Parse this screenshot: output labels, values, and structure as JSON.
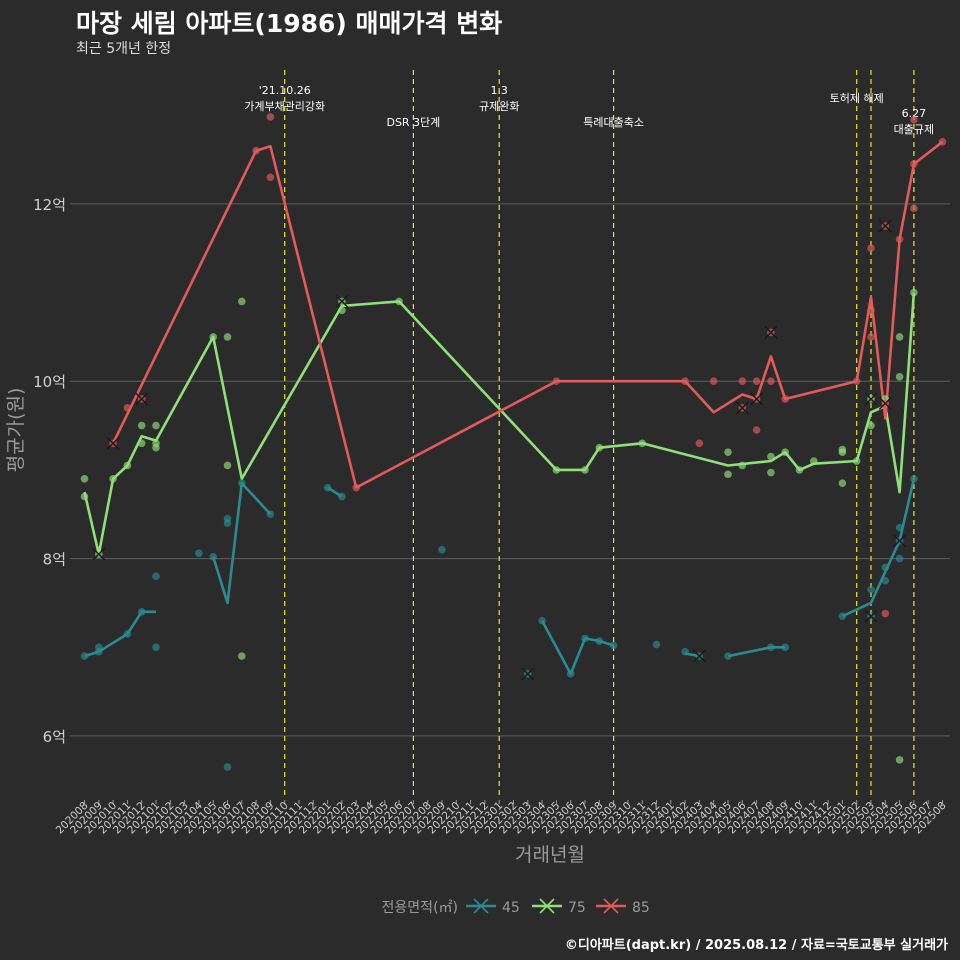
{
  "chart_data": {
    "type": "line",
    "title": "마장 세림 아파트(1986) 매매가격 변화",
    "subtitle": "최근 5개년 한정",
    "xlabel": "거래년월",
    "ylabel": "평균가(원)",
    "caption": "©디아파트(dapt.kr) / 2025.08.12 / 자료=국토교통부 실거래가",
    "y_unit": "억",
    "ylim": [
      5.3,
      13.6
    ],
    "yticks": [
      6,
      8,
      10,
      12
    ],
    "ytick_labels": [
      "6억",
      "8억",
      "10억",
      "12억"
    ],
    "categories": [
      "202008",
      "202009",
      "202010",
      "202011",
      "202012",
      "202101",
      "202102",
      "202103",
      "202104",
      "202105",
      "202106",
      "202107",
      "202108",
      "202109",
      "202110",
      "202111",
      "202112",
      "202201",
      "202202",
      "202203",
      "202204",
      "202205",
      "202206",
      "202207",
      "202208",
      "202209",
      "202210",
      "202211",
      "202212",
      "202301",
      "202302",
      "202303",
      "202304",
      "202305",
      "202306",
      "202307",
      "202308",
      "202309",
      "202310",
      "202311",
      "202312",
      "202401",
      "202402",
      "202403",
      "202404",
      "202405",
      "202406",
      "202407",
      "202408",
      "202409",
      "202410",
      "202411",
      "202412",
      "202501",
      "202502",
      "202503",
      "202504",
      "202505",
      "202506",
      "202507",
      "202508"
    ],
    "events": [
      {
        "month": "202110",
        "label": "'21.10.26\n가계부채관리강화"
      },
      {
        "month": "202207",
        "label": "DSR 3단계"
      },
      {
        "month": "202301",
        "label": "1.3\n규제완화"
      },
      {
        "month": "202309",
        "label": "특례대출축소"
      },
      {
        "month": "202502",
        "label": "토허제 해제"
      },
      {
        "month": "202503",
        "label": ""
      },
      {
        "month": "202506",
        "label": "6.27\n대출규제"
      }
    ],
    "legend": {
      "title": "전용면적(㎡)",
      "position": "bottom"
    },
    "series": [
      {
        "name": "45",
        "color": "#2a8c92",
        "line": [
          [
            [
              "202008",
              6.9
            ],
            [
              "202009",
              6.95
            ],
            [
              "202011",
              7.15
            ],
            [
              "202012",
              7.4
            ],
            [
              "202101",
              7.4
            ]
          ],
          [
            [
              "202105",
              8.02
            ],
            [
              "202106",
              7.5
            ],
            [
              "202107",
              8.85
            ],
            [
              "202109",
              8.5
            ]
          ],
          [
            [
              "202201",
              8.8
            ],
            [
              "202202",
              8.7
            ]
          ],
          [
            [
              "202304",
              7.3
            ],
            [
              "202306",
              6.7
            ],
            [
              "202307",
              7.1
            ],
            [
              "202308",
              7.07
            ],
            [
              "202309",
              7.02
            ]
          ],
          [
            [
              "202402",
              6.93
            ],
            [
              "202403",
              6.9
            ]
          ],
          [
            [
              "202405",
              6.9
            ],
            [
              "202408",
              7.0
            ],
            [
              "202409",
              7.0
            ]
          ],
          [
            [
              "202501",
              7.35
            ],
            [
              "202503",
              7.5
            ],
            [
              "202505",
              8.2
            ],
            [
              "202506",
              8.9
            ]
          ]
        ],
        "points": [
          [
            "202008",
            6.9
          ],
          [
            "202009",
            6.95
          ],
          [
            "202009",
            7.0
          ],
          [
            "202011",
            7.15
          ],
          [
            "202012",
            7.4
          ],
          [
            "202101",
            7.8
          ],
          [
            "202101",
            7.0
          ],
          [
            "202104",
            8.06
          ],
          [
            "202105",
            8.02
          ],
          [
            "202106",
            8.45
          ],
          [
            "202106",
            8.4
          ],
          [
            "202106",
            5.65
          ],
          [
            "202107",
            8.85
          ],
          [
            "202109",
            8.5
          ],
          [
            "202201",
            8.8
          ],
          [
            "202202",
            8.7
          ],
          [
            "202209",
            8.1
          ],
          [
            "202303",
            6.7
          ],
          [
            "202304",
            7.3
          ],
          [
            "202306",
            6.7
          ],
          [
            "202307",
            7.1
          ],
          [
            "202308",
            7.07
          ],
          [
            "202309",
            7.02
          ],
          [
            "202312",
            7.03
          ],
          [
            "202402",
            6.95
          ],
          [
            "202403",
            6.9
          ],
          [
            "202405",
            6.9
          ],
          [
            "202408",
            7.0
          ],
          [
            "202409",
            7.0
          ],
          [
            "202501",
            7.35
          ],
          [
            "202503",
            7.35
          ],
          [
            "202503",
            7.65
          ],
          [
            "202504",
            7.75
          ],
          [
            "202504",
            7.9
          ],
          [
            "202505",
            8.0
          ],
          [
            "202505",
            8.2
          ],
          [
            "202505",
            8.35
          ],
          [
            "202506",
            8.9
          ]
        ],
        "cross_points": [
          [
            "202303",
            6.7
          ],
          [
            "202403",
            6.9
          ],
          [
            "202503",
            7.35
          ],
          [
            "202505",
            8.2
          ]
        ]
      },
      {
        "name": "75",
        "color": "#90e07a",
        "line": [
          [
            [
              "202008",
              8.75
            ],
            [
              "202009",
              8.05
            ],
            [
              "202010",
              8.9
            ],
            [
              "202011",
              9.05
            ],
            [
              "202012",
              9.38
            ],
            [
              "202101",
              9.33
            ],
            [
              "202105",
              10.5
            ],
            [
              "202107",
              8.9
            ],
            [
              "202202",
              10.85
            ],
            [
              "202206",
              10.9
            ],
            [
              "202305",
              9.0
            ],
            [
              "202307",
              9.0
            ],
            [
              "202308",
              9.25
            ],
            [
              "202311",
              9.3
            ],
            [
              "202405",
              9.05
            ],
            [
              "202408",
              9.1
            ],
            [
              "202409",
              9.2
            ],
            [
              "202410",
              9.0
            ],
            [
              "202411",
              9.07
            ],
            [
              "202502",
              9.1
            ],
            [
              "202503",
              9.65
            ],
            [
              "202504",
              9.72
            ],
            [
              "202505",
              8.75
            ],
            [
              "202506",
              11.0
            ]
          ]
        ],
        "points": [
          [
            "202008",
            8.9
          ],
          [
            "202008",
            8.7
          ],
          [
            "202009",
            8.05
          ],
          [
            "202010",
            8.9
          ],
          [
            "202011",
            9.05
          ],
          [
            "202012",
            9.5
          ],
          [
            "202012",
            9.3
          ],
          [
            "202101",
            9.5
          ],
          [
            "202101",
            9.3
          ],
          [
            "202101",
            9.25
          ],
          [
            "202105",
            10.5
          ],
          [
            "202106",
            10.5
          ],
          [
            "202106",
            9.05
          ],
          [
            "202107",
            10.9
          ],
          [
            "202107",
            6.9
          ],
          [
            "202202",
            10.8
          ],
          [
            "202202",
            10.9
          ],
          [
            "202206",
            10.9
          ],
          [
            "202305",
            9.0
          ],
          [
            "202307",
            9.0
          ],
          [
            "202308",
            9.25
          ],
          [
            "202311",
            9.3
          ],
          [
            "202405",
            9.2
          ],
          [
            "202405",
            8.95
          ],
          [
            "202406",
            9.05
          ],
          [
            "202408",
            9.15
          ],
          [
            "202408",
            8.97
          ],
          [
            "202409",
            9.2
          ],
          [
            "202410",
            9.0
          ],
          [
            "202411",
            9.1
          ],
          [
            "202501",
            9.2
          ],
          [
            "202501",
            9.23
          ],
          [
            "202501",
            8.85
          ],
          [
            "202502",
            9.1
          ],
          [
            "202503",
            9.8
          ],
          [
            "202503",
            9.5
          ],
          [
            "202504",
            9.8
          ],
          [
            "202505",
            10.5
          ],
          [
            "202505",
            10.05
          ],
          [
            "202505",
            5.73
          ],
          [
            "202506",
            11.0
          ]
        ],
        "cross_points": [
          [
            "202009",
            8.05
          ],
          [
            "202202",
            10.9
          ],
          [
            "202503",
            9.8
          ]
        ]
      },
      {
        "name": "85",
        "color": "#e35a5a",
        "line": [
          [
            [
              "202010",
              9.3
            ],
            [
              "202108",
              12.6
            ],
            [
              "202109",
              12.65
            ],
            [
              "202203",
              8.8
            ],
            [
              "202305",
              10.0
            ],
            [
              "202402",
              10.0
            ],
            [
              "202404",
              9.65
            ],
            [
              "202406",
              9.85
            ],
            [
              "202407",
              9.8
            ],
            [
              "202408",
              10.28
            ],
            [
              "202409",
              9.8
            ],
            [
              "202502",
              10.0
            ],
            [
              "202503",
              10.95
            ],
            [
              "202504",
              9.58
            ],
            [
              "202505",
              11.6
            ],
            [
              "202506",
              12.45
            ],
            [
              "202508",
              12.7
            ]
          ]
        ],
        "points": [
          [
            "202010",
            9.3
          ],
          [
            "202011",
            9.7
          ],
          [
            "202012",
            9.8
          ],
          [
            "202108",
            12.6
          ],
          [
            "202109",
            12.3
          ],
          [
            "202109",
            12.98
          ],
          [
            "202203",
            8.8
          ],
          [
            "202305",
            10.0
          ],
          [
            "202402",
            10.0
          ],
          [
            "202403",
            9.3
          ],
          [
            "202404",
            10.0
          ],
          [
            "202406",
            10.0
          ],
          [
            "202406",
            9.7
          ],
          [
            "202407",
            10.0
          ],
          [
            "202407",
            9.45
          ],
          [
            "202407",
            9.8
          ],
          [
            "202408",
            10.55
          ],
          [
            "202408",
            10.0
          ],
          [
            "202409",
            9.8
          ],
          [
            "202502",
            10.0
          ],
          [
            "202503",
            11.5
          ],
          [
            "202503",
            10.5
          ],
          [
            "202503",
            10.8
          ],
          [
            "202504",
            11.75
          ],
          [
            "202504",
            9.75
          ],
          [
            "202504",
            7.38
          ],
          [
            "202505",
            11.6
          ],
          [
            "202506",
            11.95
          ],
          [
            "202506",
            12.45
          ],
          [
            "202506",
            12.95
          ],
          [
            "202508",
            12.7
          ]
        ],
        "cross_points": [
          [
            "202010",
            9.3
          ],
          [
            "202012",
            9.8
          ],
          [
            "202406",
            9.7
          ],
          [
            "202407",
            9.8
          ],
          [
            "202408",
            10.55
          ],
          [
            "202504",
            11.75
          ],
          [
            "202504",
            9.75
          ]
        ]
      }
    ]
  }
}
